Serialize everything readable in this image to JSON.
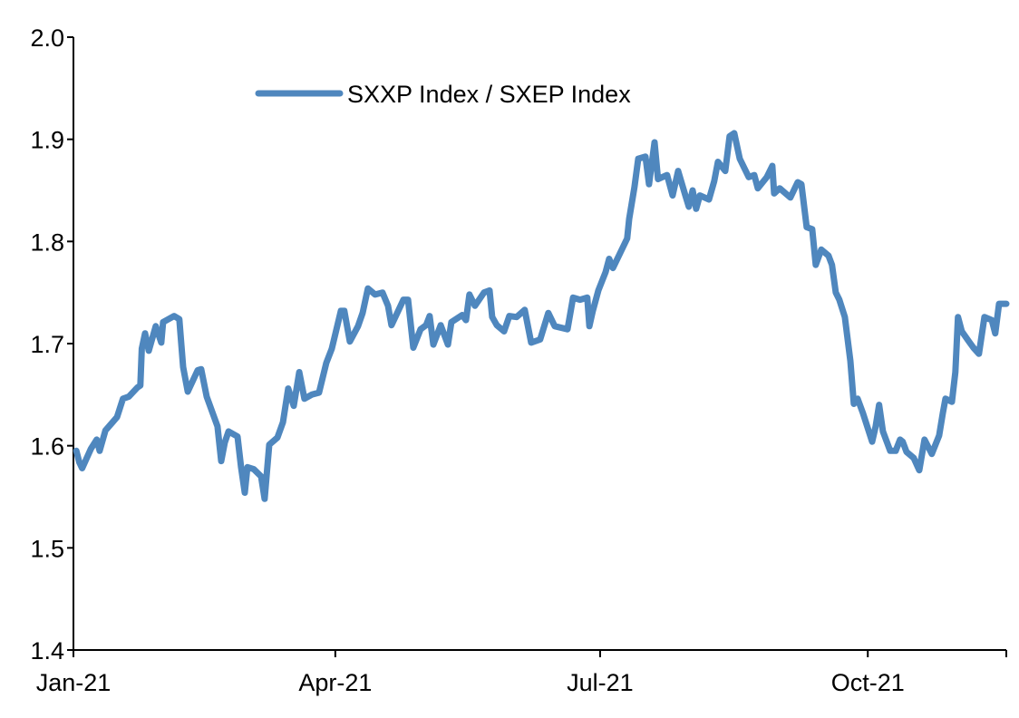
{
  "chart_data": {
    "type": "line",
    "title": "",
    "xlabel": "",
    "ylabel": "",
    "x_unit": "days since 1-Jan-2021",
    "xlim": [
      0,
      320.6
    ],
    "ylim": [
      1.4,
      2.0
    ],
    "grid": false,
    "legend_placement": "top-left",
    "y_ticks": [
      1.4,
      1.5,
      1.6,
      1.7,
      1.8,
      1.9,
      2.0
    ],
    "y_tick_labels": [
      "1.4",
      "1.5",
      "1.6",
      "1.7",
      "1.8",
      "1.9",
      "2.0"
    ],
    "x_ticks": [
      0,
      90,
      181,
      273
    ],
    "x_tick_labels": [
      "Jan-21",
      "Apr-21",
      "Jul-21",
      "Oct-21"
    ],
    "colors": {
      "series": "#4F87BE",
      "axis": "#000000"
    },
    "series": [
      {
        "name": "SXXP Index / SXEP Index",
        "x": [
          1,
          2,
          3,
          6,
          8,
          9,
          11,
          15,
          17,
          19,
          22,
          23,
          23.5,
          24.6,
          25.9,
          28.3,
          30.2,
          30.8,
          34.6,
          36.4,
          37.7,
          39.3,
          42.7,
          43.9,
          45.8,
          49.5,
          50.8,
          52,
          53.3,
          56.4,
          57.6,
          58.9,
          59.8,
          62,
          64.5,
          65.7,
          67.3,
          70.1,
          72,
          73.8,
          75.7,
          77.6,
          79.4,
          81.9,
          84.4,
          86.9,
          88.8,
          91.9,
          93.1,
          95,
          97.8,
          99.4,
          101.2,
          103.7,
          106.2,
          108.1,
          109.3,
          113.4,
          115,
          116.8,
          119.3,
          121.2,
          122.4,
          123.7,
          126.2,
          128.7,
          129.9,
          133.6,
          134.9,
          136.1,
          138,
          141.1,
          143,
          143.9,
          145.5,
          148,
          149.8,
          152.3,
          155.1,
          157.3,
          160.4,
          163.2,
          165.4,
          169.8,
          171.7,
          174.1,
          176.6,
          177.3,
          178.5,
          180.4,
          182.9,
          184.1,
          185.4,
          190.3,
          191,
          192.8,
          194.1,
          196.6,
          197.8,
          199.7,
          200.9,
          204,
          205.9,
          207.8,
          210.3,
          211.5,
          212.8,
          214,
          215.3,
          218.4,
          220.2,
          221.5,
          224,
          225.5,
          227.1,
          229,
          232.1,
          234,
          235.2,
          238.3,
          240.2,
          240.8,
          242.7,
          246.4,
          248.9,
          250.2,
          252,
          253.9,
          255.1,
          257,
          259.5,
          260.7,
          262,
          263.2,
          265.1,
          267,
          268.2,
          269.5,
          271.3,
          274.5,
          275.7,
          276.9,
          278.2,
          280.7,
          282.6,
          284.1,
          285,
          286.3,
          288.8,
          290.7,
          292.5,
          295,
          297.5,
          298.8,
          299.7,
          301.9,
          303.1,
          304,
          305.3,
          307.5,
          309.3,
          311.2,
          313.1,
          315.6,
          316.8,
          318.1,
          320.6
        ],
        "values": [
          1.595,
          1.584,
          1.578,
          1.597,
          1.606,
          1.595,
          1.615,
          1.628,
          1.646,
          1.648,
          1.657,
          1.659,
          1.695,
          1.71,
          1.693,
          1.717,
          1.701,
          1.721,
          1.727,
          1.724,
          1.677,
          1.653,
          1.674,
          1.675,
          1.648,
          1.619,
          1.585,
          1.603,
          1.614,
          1.609,
          1.579,
          1.554,
          1.579,
          1.577,
          1.57,
          1.548,
          1.601,
          1.608,
          1.623,
          1.656,
          1.639,
          1.672,
          1.646,
          1.65,
          1.652,
          1.681,
          1.695,
          1.732,
          1.732,
          1.702,
          1.717,
          1.73,
          1.754,
          1.748,
          1.75,
          1.737,
          1.718,
          1.743,
          1.743,
          1.696,
          1.714,
          1.718,
          1.727,
          1.699,
          1.718,
          1.699,
          1.721,
          1.728,
          1.723,
          1.748,
          1.737,
          1.75,
          1.752,
          1.726,
          1.718,
          1.712,
          1.727,
          1.726,
          1.733,
          1.701,
          1.704,
          1.73,
          1.717,
          1.714,
          1.745,
          1.743,
          1.745,
          1.717,
          1.732,
          1.752,
          1.77,
          1.783,
          1.774,
          1.803,
          1.822,
          1.853,
          1.881,
          1.883,
          1.856,
          1.897,
          1.861,
          1.865,
          1.845,
          1.869,
          1.845,
          1.834,
          1.85,
          1.832,
          1.845,
          1.841,
          1.859,
          1.878,
          1.869,
          1.903,
          1.906,
          1.881,
          1.863,
          1.865,
          1.852,
          1.863,
          1.874,
          1.847,
          1.852,
          1.843,
          1.858,
          1.856,
          1.814,
          1.812,
          1.777,
          1.792,
          1.786,
          1.777,
          1.75,
          1.743,
          1.726,
          1.683,
          1.641,
          1.646,
          1.632,
          1.604,
          1.619,
          1.64,
          1.614,
          1.595,
          1.595,
          1.606,
          1.604,
          1.594,
          1.588,
          1.576,
          1.606,
          1.592,
          1.61,
          1.632,
          1.646,
          1.643,
          1.672,
          1.726,
          1.712,
          1.703,
          1.696,
          1.69,
          1.726,
          1.723,
          1.71,
          1.739,
          1.739
        ]
      }
    ]
  }
}
